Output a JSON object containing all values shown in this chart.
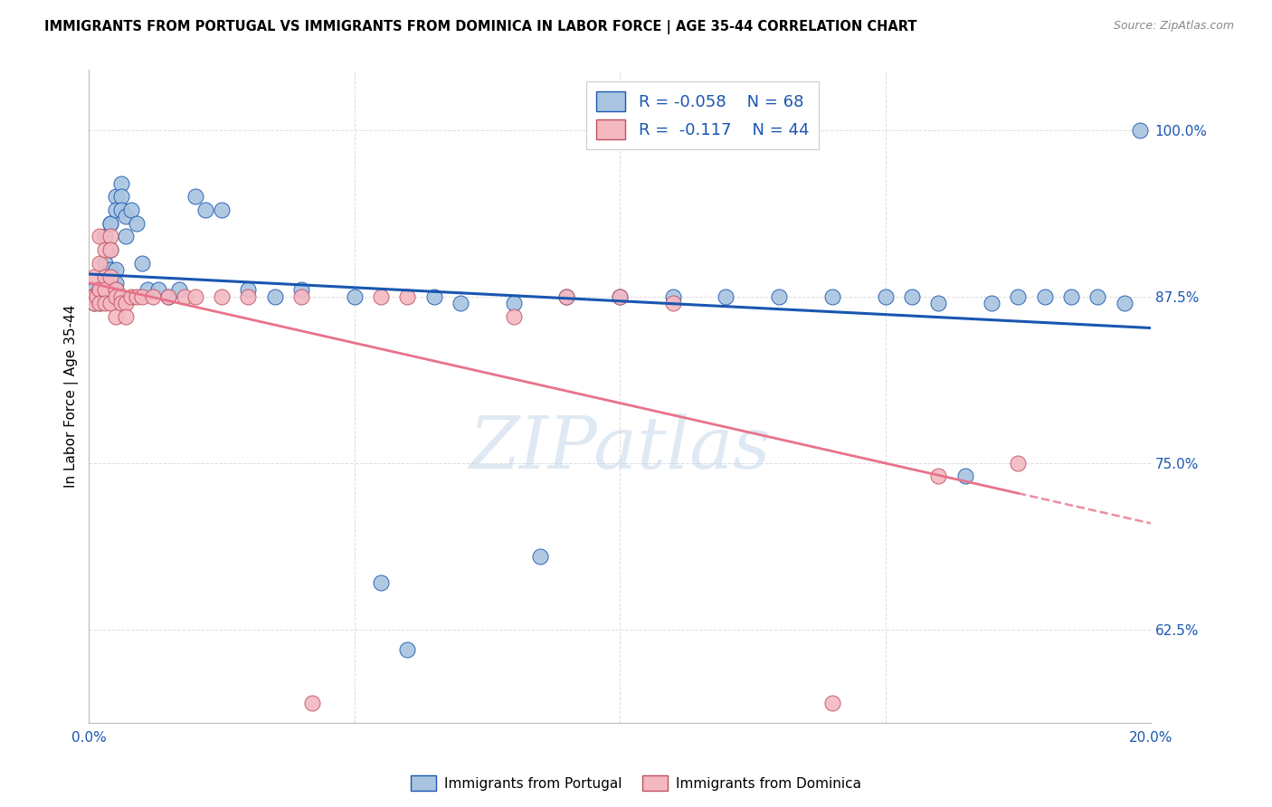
{
  "title": "IMMIGRANTS FROM PORTUGAL VS IMMIGRANTS FROM DOMINICA IN LABOR FORCE | AGE 35-44 CORRELATION CHART",
  "source": "Source: ZipAtlas.com",
  "ylabel": "In Labor Force | Age 35-44",
  "yticks": [
    0.625,
    0.75,
    0.875,
    1.0
  ],
  "ytick_labels": [
    "62.5%",
    "75.0%",
    "87.5%",
    "100.0%"
  ],
  "xlim": [
    0.0,
    0.2
  ],
  "ylim": [
    0.555,
    1.045
  ],
  "color_portugal": "#a8c4e0",
  "color_dominica": "#f4b8c1",
  "trendline_portugal_color": "#1a56b0",
  "trendline_dominica_color": "#e8728a",
  "watermark": "ZIPatlas",
  "portugal_x": [
    0.0005,
    0.001,
    0.001,
    0.001,
    0.0015,
    0.002,
    0.002,
    0.002,
    0.0025,
    0.003,
    0.003,
    0.003,
    0.003,
    0.003,
    0.004,
    0.004,
    0.004,
    0.004,
    0.004,
    0.004,
    0.005,
    0.005,
    0.005,
    0.005,
    0.005,
    0.006,
    0.006,
    0.006,
    0.007,
    0.007,
    0.008,
    0.009,
    0.01,
    0.011,
    0.013,
    0.015,
    0.017,
    0.02,
    0.022,
    0.025,
    0.03,
    0.035,
    0.04,
    0.05,
    0.055,
    0.06,
    0.065,
    0.07,
    0.08,
    0.085,
    0.09,
    0.1,
    0.11,
    0.12,
    0.13,
    0.14,
    0.15,
    0.155,
    0.16,
    0.165,
    0.17,
    0.175,
    0.18,
    0.185,
    0.19,
    0.195,
    0.198
  ],
  "portugal_y": [
    0.875,
    0.88,
    0.875,
    0.87,
    0.875,
    0.88,
    0.875,
    0.87,
    0.875,
    0.88,
    0.9,
    0.92,
    0.88,
    0.875,
    0.93,
    0.93,
    0.91,
    0.895,
    0.885,
    0.88,
    0.95,
    0.94,
    0.895,
    0.885,
    0.88,
    0.96,
    0.95,
    0.94,
    0.935,
    0.92,
    0.94,
    0.93,
    0.9,
    0.88,
    0.88,
    0.875,
    0.88,
    0.95,
    0.94,
    0.94,
    0.88,
    0.875,
    0.88,
    0.875,
    0.66,
    0.61,
    0.875,
    0.87,
    0.87,
    0.68,
    0.875,
    0.875,
    0.875,
    0.875,
    0.875,
    0.875,
    0.875,
    0.875,
    0.87,
    0.74,
    0.87,
    0.875,
    0.875,
    0.875,
    0.875,
    0.87,
    1.0
  ],
  "dominica_x": [
    0.0005,
    0.001,
    0.001,
    0.001,
    0.0015,
    0.002,
    0.002,
    0.002,
    0.002,
    0.003,
    0.003,
    0.003,
    0.003,
    0.004,
    0.004,
    0.004,
    0.004,
    0.005,
    0.005,
    0.005,
    0.006,
    0.006,
    0.007,
    0.007,
    0.008,
    0.009,
    0.01,
    0.012,
    0.015,
    0.018,
    0.02,
    0.025,
    0.03,
    0.04,
    0.042,
    0.055,
    0.06,
    0.08,
    0.09,
    0.1,
    0.11,
    0.14,
    0.16,
    0.175
  ],
  "dominica_y": [
    0.875,
    0.89,
    0.875,
    0.87,
    0.875,
    0.92,
    0.9,
    0.88,
    0.87,
    0.91,
    0.89,
    0.88,
    0.87,
    0.92,
    0.91,
    0.89,
    0.87,
    0.88,
    0.875,
    0.86,
    0.875,
    0.87,
    0.87,
    0.86,
    0.875,
    0.875,
    0.875,
    0.875,
    0.875,
    0.875,
    0.875,
    0.875,
    0.875,
    0.875,
    0.57,
    0.875,
    0.875,
    0.86,
    0.875,
    0.875,
    0.87,
    0.57,
    0.74,
    0.75
  ]
}
